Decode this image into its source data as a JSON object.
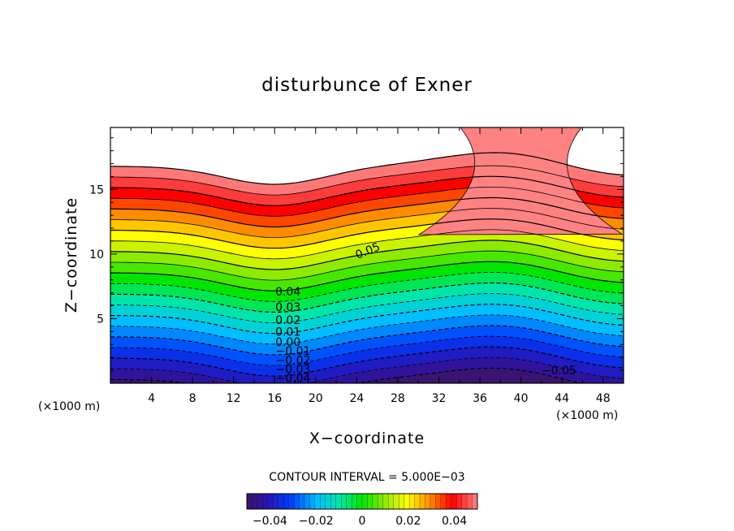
{
  "chart_data": {
    "type": "contour",
    "title": "disturbunce of Exner",
    "xlabel": "X−coordinate",
    "ylabel": "Z−coordinate",
    "x_unit": "(×1000 m)",
    "y_unit": "(×1000 m)",
    "xlim": [
      0,
      50
    ],
    "ylim": [
      0,
      19.8
    ],
    "x_ticks": [
      4,
      8,
      12,
      16,
      20,
      24,
      28,
      32,
      36,
      40,
      44,
      48
    ],
    "x_tick_labels": [
      "4",
      "8",
      "12",
      "16",
      "20",
      "24",
      "28",
      "32",
      "36",
      "40",
      "44",
      "48"
    ],
    "y_ticks": [
      5,
      10,
      15
    ],
    "y_tick_labels": [
      "5",
      "10",
      "15"
    ],
    "contour_interval_text": "CONTOUR INTERVAL = 5.000E−03",
    "contour_interval": 0.005,
    "levels_min": -0.05,
    "levels_max": 0.05,
    "contour_labels": [
      {
        "text": "0.05",
        "x": 25.2,
        "z": 10.3
      },
      {
        "text": "0.04",
        "x": 17.3,
        "z": 7.1
      },
      {
        "text": "0.03",
        "x": 17.3,
        "z": 5.9
      },
      {
        "text": "0.02",
        "x": 17.3,
        "z": 4.9
      },
      {
        "text": "0.01",
        "x": 17.3,
        "z": 4.0
      },
      {
        "text": "0.00",
        "x": 17.3,
        "z": 3.2
      },
      {
        "text": "−0.01",
        "x": 17.8,
        "z": 2.5
      },
      {
        "text": "−0.02",
        "x": 17.8,
        "z": 1.8
      },
      {
        "text": "−0.03",
        "x": 17.8,
        "z": 1.1
      },
      {
        "text": "−0.04",
        "x": 17.8,
        "z": 0.4
      },
      {
        "text": "−0.05",
        "x": 43.7,
        "z": 1.0
      }
    ],
    "colorbar": {
      "ticks": [
        -0.04,
        -0.02,
        0,
        0.02,
        0.04
      ],
      "tick_labels": [
        "−0.04",
        "−0.02",
        "0",
        "0.02",
        "0.04"
      ]
    },
    "colors": {
      "high": "#ff7878",
      "low": "#3a1470",
      "frame": "#000000"
    }
  }
}
